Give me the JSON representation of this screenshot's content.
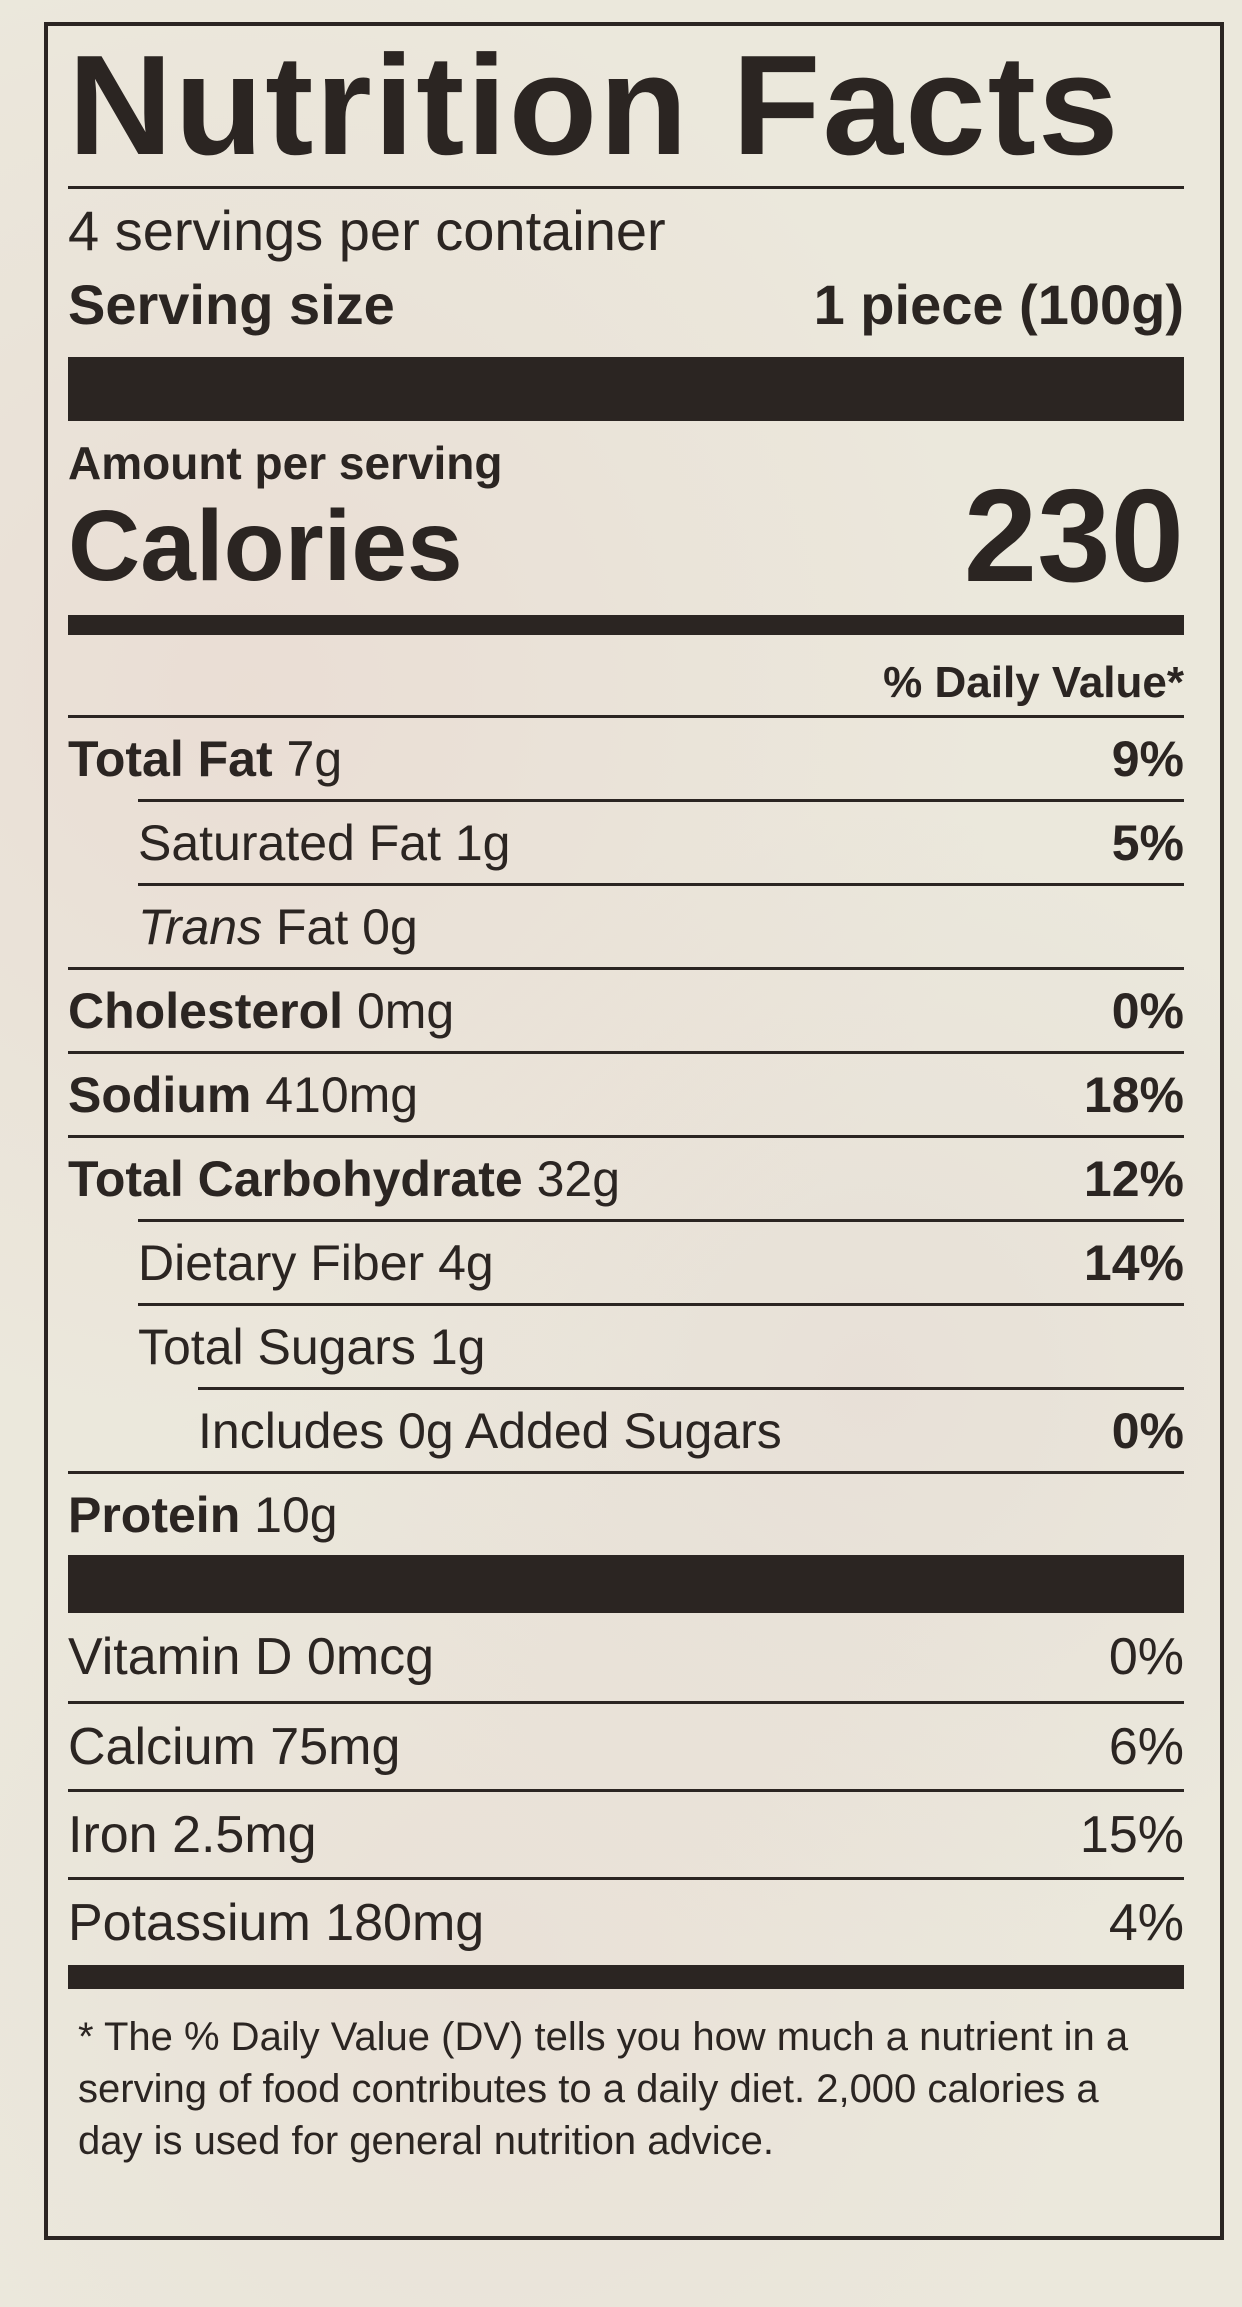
{
  "title": "Nutrition Facts",
  "servings_per_container": "4 servings per container",
  "serving_size": {
    "label": "Serving size",
    "value": "1 piece (100g)"
  },
  "amount_per_serving": "Amount per serving",
  "calories": {
    "label": "Calories",
    "value": "230"
  },
  "daily_value_header": "% Daily Value*",
  "nutrients": [
    {
      "name": "Total Fat",
      "amount": "7g",
      "dv": "9%"
    },
    {
      "name": "Saturated Fat",
      "amount": "1g",
      "dv": "5%"
    },
    {
      "name": "Trans",
      "name_suffix": "Fat",
      "amount": "0g",
      "dv": ""
    },
    {
      "name": "Cholesterol",
      "amount": "0mg",
      "dv": "0%"
    },
    {
      "name": "Sodium",
      "amount": "410mg",
      "dv": "18%"
    },
    {
      "name": "Total Carbohydrate",
      "amount": "32g",
      "dv": "12%"
    },
    {
      "name": "Dietary Fiber",
      "amount": "4g",
      "dv": "14%"
    },
    {
      "name": "Total Sugars",
      "amount": "1g",
      "dv": ""
    },
    {
      "name": "Includes 0g Added Sugars",
      "amount": "",
      "dv": "0%"
    },
    {
      "name": "Protein",
      "amount": "10g",
      "dv": ""
    }
  ],
  "vitamins": [
    {
      "name": "Vitamin D",
      "amount": "0mcg",
      "dv": "0%"
    },
    {
      "name": "Calcium",
      "amount": "75mg",
      "dv": "6%"
    },
    {
      "name": "Iron",
      "amount": "2.5mg",
      "dv": "15%"
    },
    {
      "name": "Potassium",
      "amount": "180mg",
      "dv": "4%"
    }
  ],
  "footnote": "* The % Daily Value (DV) tells you how much a nutrient in a serving of food contributes to a daily diet. 2,000 calories a day is used for general nutrition advice."
}
